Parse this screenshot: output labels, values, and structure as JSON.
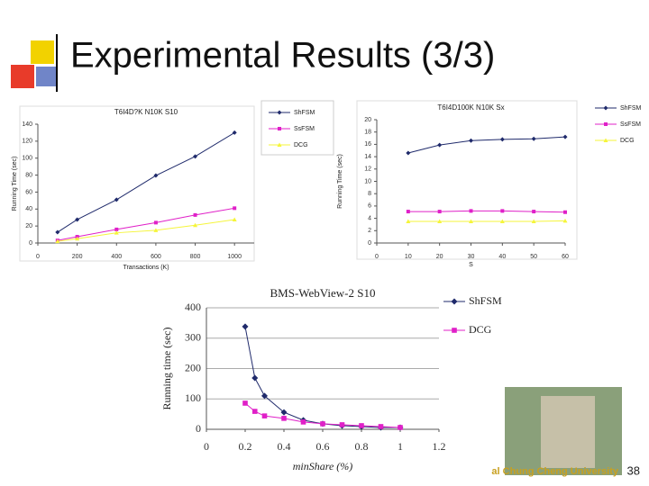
{
  "slide": {
    "title": "Experimental Results (3/3)",
    "university": "al Chung Cheng University",
    "page_number": "38"
  },
  "chart_data": [
    {
      "type": "line",
      "title": "T6I4D?K N10K S10",
      "x_label": "Transactions (K)",
      "y_label": "Running Time (sec)",
      "x": [
        100,
        200,
        400,
        600,
        800,
        1000
      ],
      "series": [
        {
          "name": "ShFSM",
          "color": "#1f2a6b",
          "marker": "diamond",
          "values": [
            12.7,
            27.6,
            51,
            79.5,
            102,
            130
          ]
        },
        {
          "name": "SsFSM",
          "color": "#e020c8",
          "marker": "square",
          "values": [
            3,
            7.4,
            16,
            24,
            33,
            41
          ]
        },
        {
          "name": "DCG",
          "color": "#f5f53a",
          "marker": "triangle",
          "values": [
            2,
            5,
            12,
            15,
            21,
            27.6
          ]
        }
      ],
      "xlim": [
        0,
        1100
      ],
      "xticks": [
        0,
        200,
        400,
        600,
        800,
        1000
      ],
      "ylim": [
        0,
        140
      ],
      "yticks": [
        0,
        20,
        40,
        60,
        80,
        100,
        120,
        140
      ],
      "grid": false
    },
    {
      "type": "line",
      "title": "T6I4D100K N10K Sx",
      "x_label": "S",
      "y_label": "Running Time (sec)",
      "x": [
        10,
        20,
        30,
        40,
        50,
        60
      ],
      "series": [
        {
          "name": "ShFSM",
          "color": "#1f2a6b",
          "marker": "diamond",
          "values": [
            14.6,
            15.9,
            16.6,
            16.8,
            16.9,
            17.2
          ]
        },
        {
          "name": "SsFSM",
          "color": "#e020c8",
          "marker": "square",
          "values": [
            5.1,
            5.1,
            5.2,
            5.2,
            5.1,
            5.0
          ]
        },
        {
          "name": "DCG",
          "color": "#f5f53a",
          "marker": "triangle",
          "values": [
            3.5,
            3.5,
            3.5,
            3.5,
            3.5,
            3.6
          ]
        }
      ],
      "xlim": [
        0,
        60
      ],
      "xticks": [
        0,
        10,
        20,
        30,
        40,
        50,
        60
      ],
      "ylim": [
        0,
        20
      ],
      "yticks": [
        0,
        2,
        4,
        6,
        8,
        10,
        12,
        14,
        16,
        18,
        20
      ],
      "grid": false
    },
    {
      "type": "line",
      "title": "BMS-WebView-2 S10",
      "x_label": "minShare (%)",
      "y_label": "Running time (sec)",
      "x": [
        0.2,
        0.25,
        0.3,
        0.4,
        0.5,
        0.6,
        0.7,
        0.8,
        0.9,
        1.0
      ],
      "series": [
        {
          "name": "ShFSM",
          "color": "#1f2a6b",
          "marker": "diamond",
          "values": [
            338,
            169,
            110,
            56,
            30,
            18,
            12,
            9,
            6,
            6
          ]
        },
        {
          "name": "DCG",
          "color": "#e020c8",
          "marker": "square",
          "values": [
            86,
            59,
            44,
            36,
            24,
            18,
            15,
            12,
            9,
            6
          ]
        }
      ],
      "xlim": [
        0,
        1.2
      ],
      "xticks": [
        0,
        0.2,
        0.4,
        0.6,
        0.8,
        1,
        1.2
      ],
      "ylim": [
        0,
        400
      ],
      "yticks": [
        0,
        100,
        200,
        300,
        400
      ],
      "grid": true
    }
  ]
}
